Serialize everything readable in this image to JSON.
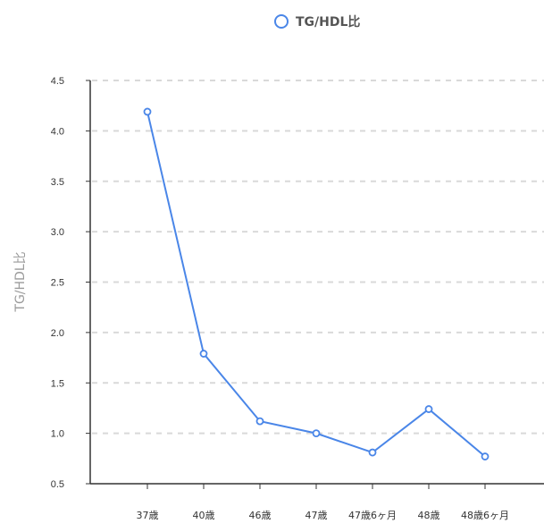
{
  "chart_data": {
    "type": "line",
    "categories": [
      "37歳",
      "40歳",
      "46歳",
      "47歳",
      "47歳6ヶ月",
      "48歳",
      "48歳6ヶ月"
    ],
    "series": [
      {
        "name": "TG/HDL比",
        "values": [
          4.19,
          1.79,
          1.12,
          1.0,
          0.81,
          1.24,
          0.77
        ]
      }
    ],
    "ylabel": "TG/HDL比",
    "xlabel": "",
    "ylim": [
      0.5,
      4.5
    ],
    "yticks": [
      "0.5",
      "1.0",
      "1.5",
      "2.0",
      "2.5",
      "3.0",
      "3.5",
      "4.0",
      "4.5"
    ],
    "grid": true,
    "legend_position": "top-center",
    "colors": {
      "series": "#4a86e8",
      "axis": "#333333",
      "grid": "#d9d9d9",
      "ylabel": "#9a9a9a"
    }
  }
}
